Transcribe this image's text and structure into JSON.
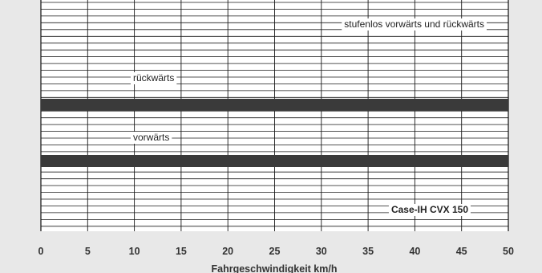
{
  "chart_data": {
    "type": "bar",
    "orientation": "horizontal",
    "xlabel": "Fahrgeschwindigkeit km/h",
    "xlim": [
      0,
      50
    ],
    "x_ticks": [
      "0",
      "5",
      "10",
      "15",
      "20",
      "25",
      "30",
      "35",
      "40",
      "45",
      "50"
    ],
    "grid": true,
    "series": [
      {
        "name": "rückwärts",
        "range": [
          0,
          50
        ]
      },
      {
        "name": "vorwärts",
        "range": [
          0,
          50
        ]
      }
    ],
    "annotations": [
      {
        "text": "stufenlos vorwärts und rückwärts"
      },
      {
        "text": "Case-IH CVX 150",
        "bold": true
      }
    ],
    "colors": {
      "bar": "#3a3a3a",
      "grid": "#1a1a1a",
      "plot_bg": "#ffffff",
      "page_bg": "#e8e8e8"
    }
  }
}
